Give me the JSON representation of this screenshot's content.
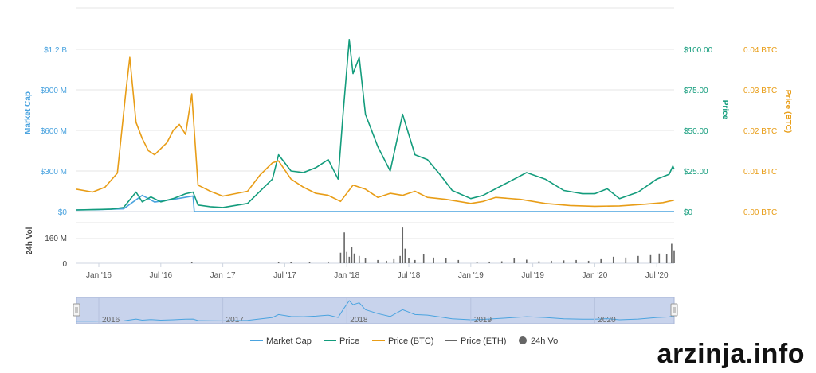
{
  "chart_data": {
    "type": "line",
    "title": "",
    "axes": {
      "market_cap": {
        "label": "Market Cap",
        "ticks": [
          "$0",
          "$300 M",
          "$600 M",
          "$900 M",
          "$1.2 B"
        ],
        "ylim": [
          0,
          1200000000
        ],
        "color": "#4aa3df"
      },
      "price": {
        "label": "Price",
        "ticks": [
          "$0",
          "$25.00",
          "$50.00",
          "$75.00",
          "$100.00"
        ],
        "ylim": [
          0,
          100
        ],
        "color": "#139c7c"
      },
      "price_btc": {
        "label": "Price (BTC)",
        "ticks": [
          "0.00 BTC",
          "0.01 BTC",
          "0.02 BTC",
          "0.03 BTC",
          "0.04 BTC"
        ],
        "ylim": [
          0,
          0.04
        ],
        "color": "#e89d17"
      },
      "volume": {
        "label": "24h Vol",
        "ticks": [
          "0",
          "160 M"
        ],
        "ylim": [
          0,
          250000000
        ],
        "color": "#444444"
      }
    },
    "x_ticks": [
      "Jan '16",
      "Jul '16",
      "Jan '17",
      "Jul '17",
      "Jan '18",
      "Jul '18",
      "Jan '19",
      "Jul '19",
      "Jan '20",
      "Jul '20"
    ],
    "x_tick_values": [
      2016.0,
      2016.5,
      2017.0,
      2017.5,
      2018.0,
      2018.5,
      2019.0,
      2019.5,
      2020.0,
      2020.5
    ],
    "xlim": [
      2015.82,
      2020.64
    ],
    "series": [
      {
        "name": "Market Cap",
        "axis": "market_cap",
        "color": "#4aa3df",
        "points": [
          [
            2015.82,
            12000000
          ],
          [
            2016.0,
            14000000
          ],
          [
            2016.2,
            20000000
          ],
          [
            2016.35,
            120000000
          ],
          [
            2016.45,
            70000000
          ],
          [
            2016.6,
            90000000
          ],
          [
            2016.76,
            115000000
          ],
          [
            2016.77,
            0
          ],
          [
            2017.0,
            0
          ],
          [
            2017.3,
            0
          ],
          [
            2017.5,
            0
          ],
          [
            2018.0,
            0
          ],
          [
            2019.0,
            0
          ],
          [
            2020.0,
            0
          ],
          [
            2020.64,
            0
          ]
        ]
      },
      {
        "name": "Price",
        "axis": "price",
        "color": "#139c7c",
        "points": [
          [
            2015.82,
            1.0
          ],
          [
            2015.95,
            1.2
          ],
          [
            2016.1,
            1.5
          ],
          [
            2016.2,
            2.5
          ],
          [
            2016.3,
            12.0
          ],
          [
            2016.35,
            6.0
          ],
          [
            2016.42,
            9.0
          ],
          [
            2016.5,
            6.0
          ],
          [
            2016.6,
            8.0
          ],
          [
            2016.7,
            11.0
          ],
          [
            2016.76,
            12.0
          ],
          [
            2016.8,
            4.0
          ],
          [
            2016.9,
            3.0
          ],
          [
            2017.0,
            2.5
          ],
          [
            2017.2,
            5.0
          ],
          [
            2017.4,
            20.0
          ],
          [
            2017.45,
            35.0
          ],
          [
            2017.55,
            25.0
          ],
          [
            2017.65,
            24.0
          ],
          [
            2017.75,
            27.0
          ],
          [
            2017.85,
            32.0
          ],
          [
            2017.93,
            20.0
          ],
          [
            2017.97,
            60.0
          ],
          [
            2018.02,
            106.0
          ],
          [
            2018.05,
            85.0
          ],
          [
            2018.1,
            95.0
          ],
          [
            2018.15,
            60.0
          ],
          [
            2018.25,
            40.0
          ],
          [
            2018.35,
            25.0
          ],
          [
            2018.45,
            60.0
          ],
          [
            2018.55,
            35.0
          ],
          [
            2018.65,
            32.0
          ],
          [
            2018.75,
            23.0
          ],
          [
            2018.85,
            13.0
          ],
          [
            2019.0,
            8.0
          ],
          [
            2019.1,
            10.0
          ],
          [
            2019.3,
            18.0
          ],
          [
            2019.45,
            24.0
          ],
          [
            2019.6,
            20.0
          ],
          [
            2019.75,
            13.0
          ],
          [
            2019.9,
            11.0
          ],
          [
            2020.0,
            11.0
          ],
          [
            2020.1,
            14.0
          ],
          [
            2020.2,
            8.0
          ],
          [
            2020.35,
            12.0
          ],
          [
            2020.5,
            20.0
          ],
          [
            2020.6,
            23.0
          ],
          [
            2020.63,
            28.0
          ],
          [
            2020.64,
            26.0
          ]
        ]
      },
      {
        "name": "Price (BTC)",
        "axis": "price_btc",
        "color": "#e89d17",
        "points": [
          [
            2015.82,
            0.0055
          ],
          [
            2015.95,
            0.0048
          ],
          [
            2016.05,
            0.006
          ],
          [
            2016.15,
            0.0095
          ],
          [
            2016.22,
            0.03
          ],
          [
            2016.25,
            0.038
          ],
          [
            2016.3,
            0.022
          ],
          [
            2016.35,
            0.018
          ],
          [
            2016.4,
            0.015
          ],
          [
            2016.45,
            0.014
          ],
          [
            2016.55,
            0.017
          ],
          [
            2016.6,
            0.02
          ],
          [
            2016.65,
            0.0215
          ],
          [
            2016.7,
            0.019
          ],
          [
            2016.75,
            0.029
          ],
          [
            2016.8,
            0.0065
          ],
          [
            2016.9,
            0.005
          ],
          [
            2017.0,
            0.0038
          ],
          [
            2017.2,
            0.005
          ],
          [
            2017.3,
            0.009
          ],
          [
            2017.4,
            0.012
          ],
          [
            2017.45,
            0.0125
          ],
          [
            2017.55,
            0.008
          ],
          [
            2017.65,
            0.006
          ],
          [
            2017.75,
            0.0045
          ],
          [
            2017.85,
            0.004
          ],
          [
            2017.95,
            0.0025
          ],
          [
            2018.05,
            0.0065
          ],
          [
            2018.15,
            0.0055
          ],
          [
            2018.25,
            0.0035
          ],
          [
            2018.35,
            0.0045
          ],
          [
            2018.45,
            0.004
          ],
          [
            2018.55,
            0.005
          ],
          [
            2018.65,
            0.0035
          ],
          [
            2018.8,
            0.003
          ],
          [
            2019.0,
            0.002
          ],
          [
            2019.1,
            0.0025
          ],
          [
            2019.2,
            0.0035
          ],
          [
            2019.4,
            0.003
          ],
          [
            2019.6,
            0.002
          ],
          [
            2019.8,
            0.0015
          ],
          [
            2020.0,
            0.0013
          ],
          [
            2020.2,
            0.0014
          ],
          [
            2020.4,
            0.0018
          ],
          [
            2020.55,
            0.0022
          ],
          [
            2020.64,
            0.0028
          ]
        ]
      },
      {
        "name": "Price (ETH)",
        "axis": "price",
        "color": "#666666",
        "points": []
      }
    ],
    "volume": {
      "name": "24h Vol",
      "color": "#666666",
      "bars": [
        [
          2016.75,
          6000000
        ],
        [
          2017.45,
          8000000
        ],
        [
          2017.55,
          6000000
        ],
        [
          2017.7,
          5000000
        ],
        [
          2017.85,
          10000000
        ],
        [
          2017.95,
          65000000
        ],
        [
          2017.98,
          190000000
        ],
        [
          2018.0,
          70000000
        ],
        [
          2018.02,
          40000000
        ],
        [
          2018.04,
          100000000
        ],
        [
          2018.06,
          60000000
        ],
        [
          2018.1,
          45000000
        ],
        [
          2018.15,
          30000000
        ],
        [
          2018.25,
          20000000
        ],
        [
          2018.32,
          15000000
        ],
        [
          2018.38,
          25000000
        ],
        [
          2018.43,
          45000000
        ],
        [
          2018.45,
          220000000
        ],
        [
          2018.47,
          90000000
        ],
        [
          2018.5,
          30000000
        ],
        [
          2018.55,
          20000000
        ],
        [
          2018.62,
          55000000
        ],
        [
          2018.7,
          35000000
        ],
        [
          2018.8,
          30000000
        ],
        [
          2018.9,
          20000000
        ],
        [
          2019.05,
          8000000
        ],
        [
          2019.15,
          10000000
        ],
        [
          2019.25,
          12000000
        ],
        [
          2019.35,
          30000000
        ],
        [
          2019.45,
          22000000
        ],
        [
          2019.55,
          12000000
        ],
        [
          2019.65,
          15000000
        ],
        [
          2019.75,
          18000000
        ],
        [
          2019.85,
          20000000
        ],
        [
          2019.95,
          15000000
        ],
        [
          2020.05,
          25000000
        ],
        [
          2020.15,
          40000000
        ],
        [
          2020.25,
          35000000
        ],
        [
          2020.35,
          45000000
        ],
        [
          2020.45,
          50000000
        ],
        [
          2020.52,
          60000000
        ],
        [
          2020.58,
          55000000
        ],
        [
          2020.62,
          120000000
        ],
        [
          2020.64,
          80000000
        ]
      ]
    },
    "navigator": {
      "labels": [
        "2016",
        "2017",
        "2018",
        "2019",
        "2020"
      ],
      "label_values": [
        2016.0,
        2017.0,
        2018.0,
        2019.0,
        2020.0
      ],
      "range": [
        2015.82,
        2020.64
      ],
      "fill": "#c8d3ec"
    },
    "legend": {
      "position": "bottom",
      "items": [
        {
          "label": "Market Cap",
          "color": "#4aa3df",
          "kind": "line"
        },
        {
          "label": "Price",
          "color": "#139c7c",
          "kind": "line"
        },
        {
          "label": "Price (BTC)",
          "color": "#e89d17",
          "kind": "line"
        },
        {
          "label": "Price (ETH)",
          "color": "#666666",
          "kind": "line"
        },
        {
          "label": "24h Vol",
          "color": "#666666",
          "kind": "dot"
        }
      ]
    },
    "grid": true
  },
  "watermark": "arzinja.info"
}
